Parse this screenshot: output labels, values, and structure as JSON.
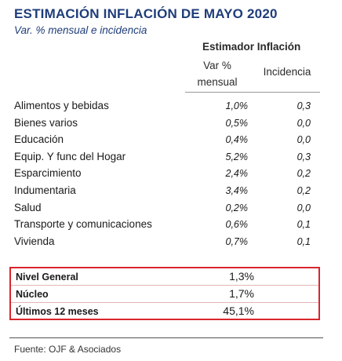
{
  "header": {
    "title": "ESTIMACIÓN INFLACIÓN DE MAYO 2020",
    "subtitle": "Var. % mensual e incidencia"
  },
  "table": {
    "group_header": "Estimador Inflación",
    "col_var_line1": "Var %",
    "col_var_line2": "mensual",
    "col_incidencia": "Incidencia",
    "rows": [
      {
        "category": "Alimentos y bebidas",
        "var": "1,0%",
        "inc": "0,3"
      },
      {
        "category": "Bienes varios",
        "var": "0,5%",
        "inc": "0,0"
      },
      {
        "category": "Educación",
        "var": "0,4%",
        "inc": "0,0"
      },
      {
        "category": "Equip. Y func del Hogar",
        "var": "5,2%",
        "inc": "0,3"
      },
      {
        "category": "Esparcimiento",
        "var": "2,4%",
        "inc": "0,2"
      },
      {
        "category": "Indumentaria",
        "var": "3,4%",
        "inc": "0,2"
      },
      {
        "category": "Salud",
        "var": "0,2%",
        "inc": "0,0"
      },
      {
        "category": "Transporte y comunicaciones",
        "var": "0,6%",
        "inc": "0,1"
      },
      {
        "category": "Vivienda",
        "var": "0,7%",
        "inc": "0,1"
      }
    ]
  },
  "summary": {
    "rows": [
      {
        "label": "Nivel General",
        "value": "1,3%"
      },
      {
        "label": "Núcleo",
        "value": "1,7%"
      },
      {
        "label": "Últimos 12 meses",
        "value": "45,1%"
      }
    ],
    "highlight_color": "#d9262c"
  },
  "footer": {
    "source": "Fuente: OJF & Asociados"
  }
}
